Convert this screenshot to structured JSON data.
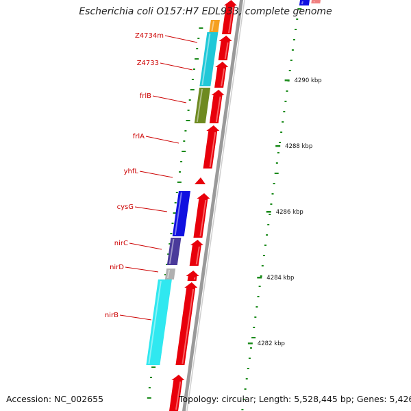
{
  "title": "Escherichia coli O157:H7 EDL933, complete genome",
  "footer": {
    "accession": "Accession: NC_002655",
    "topology": "Topology: circular; Length: 5,528,445 bp; Genes: 5,426"
  },
  "colors": {
    "forward_cds": "#e8000b",
    "gene_label": "#cc0000",
    "backbone": "#9a9a9a",
    "gc_marks": "#1a8a1a",
    "cog_orange": "#f5a020",
    "cog_cyan": "#20c8d8",
    "cog_olive": "#6e8a20",
    "cog_blue": "#1010e0",
    "cog_purple": "#4a3a9a",
    "cog_grey": "#b0b0b0",
    "cog_lightcyan": "#30e8f0"
  },
  "ticks": [
    {
      "label": "4290 kbp"
    },
    {
      "label": "4288 kbp"
    },
    {
      "label": "4286 kbp"
    },
    {
      "label": "4284 kbp"
    },
    {
      "label": "4282 kbp"
    }
  ],
  "genes": [
    {
      "name": "Z4734m"
    },
    {
      "name": "Z4733"
    },
    {
      "name": "frlB"
    },
    {
      "name": "frlA"
    },
    {
      "name": "yhfL"
    },
    {
      "name": "cysG"
    },
    {
      "name": "nirC"
    },
    {
      "name": "nirD"
    },
    {
      "name": "nirB"
    }
  ]
}
